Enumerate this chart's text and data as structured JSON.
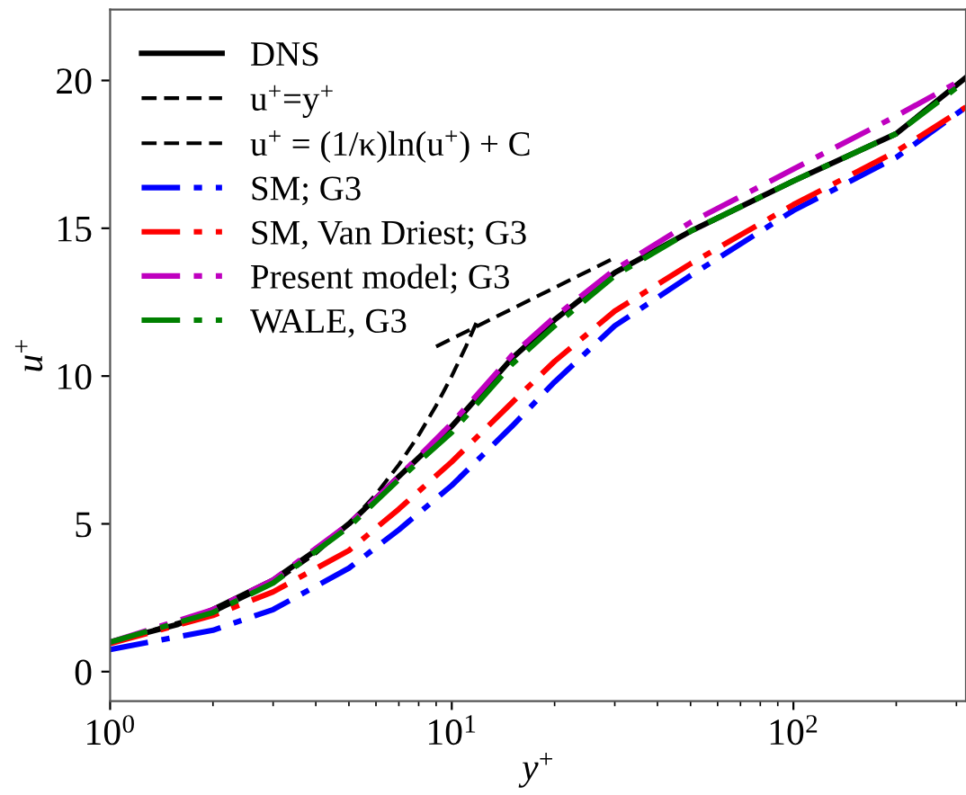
{
  "chart_data": {
    "type": "line",
    "xlabel": "y$^{+}$",
    "ylabel": "u$^{+}$",
    "log": "x",
    "xlim": [
      1,
      320
    ],
    "ylim": [
      -1,
      22.4
    ],
    "xticks": [
      {
        "value": 1,
        "label": "10$^{0}$"
      },
      {
        "value": 10,
        "label": "10$^{1}$"
      },
      {
        "value": 100,
        "label": "10$^{2}$"
      }
    ],
    "yticks": [
      0,
      5,
      10,
      15,
      20
    ],
    "grid": false,
    "legend": "top left",
    "series": [
      {
        "name": "DNS",
        "color": "#000000",
        "line_style": "solid",
        "x": [
          1,
          1.58,
          2,
          3,
          4,
          5,
          7,
          10,
          15,
          20,
          30,
          50,
          100,
          200,
          320
        ],
        "values": [
          1.0,
          1.6,
          2.1,
          3.1,
          4.1,
          5.0,
          6.6,
          8.3,
          10.6,
          11.9,
          13.5,
          14.9,
          16.6,
          18.2,
          20.1
        ]
      },
      {
        "name": "u$^{+}$=y$^{+}$",
        "color": "#000000",
        "line_style": "dashed",
        "x": [
          1,
          2,
          3,
          4,
          5,
          6,
          7,
          8,
          9,
          10,
          11,
          11.8
        ],
        "values": [
          1,
          2,
          3,
          4,
          5,
          6,
          7,
          8,
          9,
          10,
          11,
          11.8
        ]
      },
      {
        "name": "u$^{+}$ = (1/κ)ln(u$^{+}$) + C",
        "color": "#000000",
        "line_style": "dashed",
        "x": [
          9,
          30
        ],
        "values": [
          11.0,
          14.0
        ]
      },
      {
        "name": "SM; G3",
        "color": "#0000ff",
        "line_style": "dashdot",
        "x": [
          1,
          2,
          3,
          5,
          7,
          10,
          15,
          20,
          30,
          50,
          100,
          200,
          320
        ],
        "values": [
          0.75,
          1.4,
          2.1,
          3.5,
          4.8,
          6.3,
          8.3,
          9.8,
          11.7,
          13.4,
          15.6,
          17.4,
          19.1
        ]
      },
      {
        "name": "SM, Van Driest; G3",
        "color": "#ff0000",
        "line_style": "dashdot",
        "x": [
          1,
          2,
          3,
          5,
          7,
          10,
          15,
          20,
          30,
          50,
          100,
          200,
          320
        ],
        "values": [
          0.95,
          1.9,
          2.7,
          4.1,
          5.5,
          7.1,
          9.1,
          10.5,
          12.2,
          13.8,
          15.8,
          17.6,
          19.1
        ]
      },
      {
        "name": "Present model; G3",
        "color": "#bf00bf",
        "line_style": "dashdot",
        "x": [
          1,
          2,
          3,
          5,
          7,
          10,
          15,
          20,
          30,
          50,
          100,
          200,
          320
        ],
        "values": [
          1.0,
          2.1,
          3.1,
          5.0,
          6.6,
          8.4,
          10.7,
          12.0,
          13.6,
          15.2,
          17.0,
          18.8,
          20.1
        ]
      },
      {
        "name": "WALE, G3",
        "color": "#008000",
        "line_style": "dashdot",
        "x": [
          1,
          2,
          3,
          5,
          7,
          10,
          15,
          20,
          30,
          50,
          100,
          200,
          320
        ],
        "values": [
          1.0,
          2.0,
          3.0,
          4.9,
          6.5,
          8.1,
          10.4,
          11.7,
          13.4,
          14.9,
          16.6,
          18.2,
          20.0
        ]
      }
    ]
  }
}
